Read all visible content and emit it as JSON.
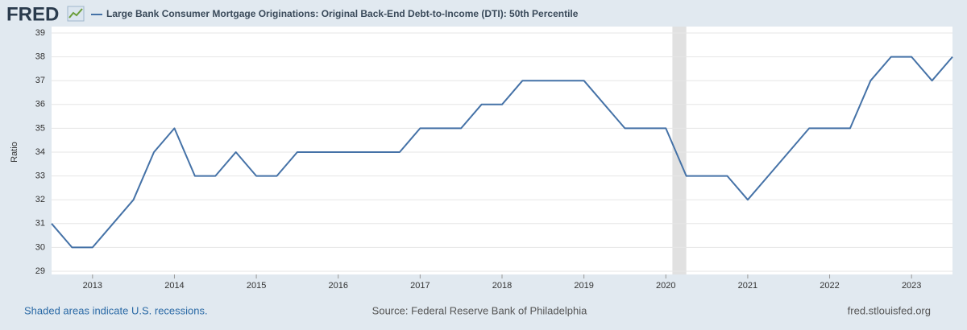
{
  "chart_data": {
    "type": "line",
    "logo": "FRED",
    "title": "Large Bank Consumer Mortgage Originations: Original Back-End Debt-to-Income (DTI): 50th Percentile",
    "y_label": "Ratio",
    "note": "Shaded areas indicate U.S. recessions.",
    "source": "Source: Federal Reserve Bank of Philadelphia",
    "site": "fred.stlouisfed.org",
    "x": [
      2012.5,
      2012.75,
      2013,
      2013.25,
      2013.5,
      2013.75,
      2014,
      2014.25,
      2014.5,
      2014.75,
      2015,
      2015.25,
      2015.5,
      2015.75,
      2016,
      2016.25,
      2016.5,
      2016.75,
      2017,
      2017.25,
      2017.5,
      2017.75,
      2018,
      2018.25,
      2018.5,
      2018.75,
      2019,
      2019.25,
      2019.5,
      2019.75,
      2020,
      2020.25,
      2020.5,
      2020.75,
      2021,
      2021.25,
      2021.5,
      2021.75,
      2022,
      2022.25,
      2022.5,
      2022.75,
      2023,
      2023.25,
      2023.5
    ],
    "series": [
      {
        "name": "Large Bank Consumer Mortgage Originations: Original Back-End Debt-to-Income (DTI): 50th Percentile",
        "color": "#4572a7",
        "values": [
          31,
          30,
          30,
          31,
          32,
          34,
          35,
          33,
          33,
          34,
          33,
          33,
          34,
          34,
          34,
          34,
          34,
          34,
          35,
          35,
          35,
          36,
          36,
          37,
          37,
          37,
          37,
          36,
          35,
          35,
          35,
          33,
          33,
          33,
          32,
          33,
          34,
          35,
          35,
          35,
          37,
          38,
          38,
          37,
          38
        ]
      }
    ],
    "recessions": [
      [
        2020.08,
        2020.25
      ]
    ],
    "xlim": [
      2012.5,
      2023.5
    ],
    "xticks": [
      2013,
      2014,
      2015,
      2016,
      2017,
      2018,
      2019,
      2020,
      2021,
      2022,
      2023
    ],
    "ylim": [
      29,
      39
    ],
    "yticks": [
      29,
      30,
      31,
      32,
      33,
      34,
      35,
      36,
      37,
      38,
      39
    ],
    "grid": true
  }
}
